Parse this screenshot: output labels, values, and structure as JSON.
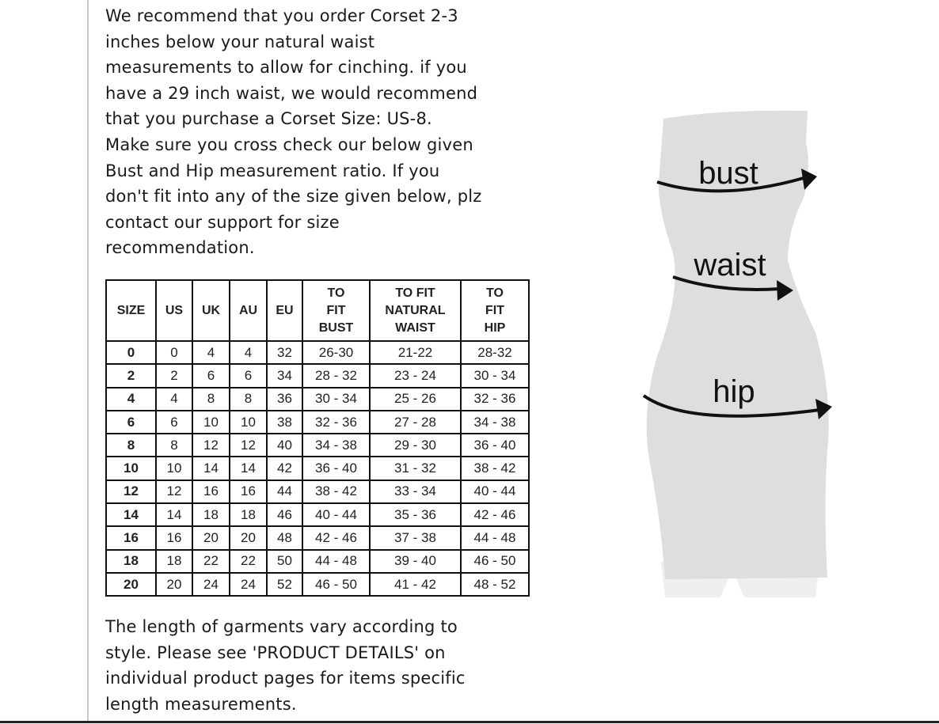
{
  "intro_lines": [
    "We recommend that you order Corset 2-3",
    "inches below your natural waist",
    "measurements to allow for cinching. if you",
    "have a 29 inch waist, we would recommend",
    "that you purchase a Corset Size: US-8.",
    "Make sure you cross check our below given",
    "Bust and Hip measurement ratio. If you",
    "don't fit into any of the size given below, plz",
    "contact our support for size",
    "recommendation."
  ],
  "table": {
    "headers": [
      [
        "SIZE"
      ],
      [
        "US"
      ],
      [
        "UK"
      ],
      [
        "AU"
      ],
      [
        "EU"
      ],
      [
        "TO",
        "FIT",
        "BUST"
      ],
      [
        "TO FIT",
        "NATURAL",
        "WAIST"
      ],
      [
        "TO",
        "FIT",
        "HIP"
      ]
    ],
    "rows": [
      [
        "0",
        "0",
        "4",
        "4",
        "32",
        "26-30",
        "21-22",
        "28-32"
      ],
      [
        "2",
        "2",
        "6",
        "6",
        "34",
        "28 - 32",
        "23 - 24",
        "30 - 34"
      ],
      [
        "4",
        "4",
        "8",
        "8",
        "36",
        "30 - 34",
        "25 - 26",
        "32 - 36"
      ],
      [
        "6",
        "6",
        "10",
        "10",
        "38",
        "32 - 36",
        "27 - 28",
        "34 - 38"
      ],
      [
        "8",
        "8",
        "12",
        "12",
        "40",
        "34 - 38",
        "29 - 30",
        "36 - 40"
      ],
      [
        "10",
        "10",
        "14",
        "14",
        "42",
        "36 - 40",
        "31 - 32",
        "38 - 42"
      ],
      [
        "12",
        "12",
        "16",
        "16",
        "44",
        "38 - 42",
        "33 - 34",
        "40 - 44"
      ],
      [
        "14",
        "14",
        "18",
        "18",
        "46",
        "40 - 44",
        "35 - 36",
        "42 - 46"
      ],
      [
        "16",
        "16",
        "20",
        "20",
        "48",
        "42 - 46",
        "37 - 38",
        "44 - 48"
      ],
      [
        "18",
        "18",
        "22",
        "22",
        "50",
        "44 - 48",
        "39 - 40",
        "46 - 50"
      ],
      [
        "20",
        "20",
        "24",
        "24",
        "52",
        "46 - 50",
        "41 - 42",
        "48 - 52"
      ]
    ]
  },
  "footer_lines": [
    "The length of garments vary according to",
    "style. Please see 'PRODUCT DETAILS'  on",
    "individual product pages for items specific",
    "length measurements."
  ],
  "figure": {
    "bust": "bust",
    "waist": "waist",
    "hip": "hip",
    "body_color": "#dedede"
  }
}
